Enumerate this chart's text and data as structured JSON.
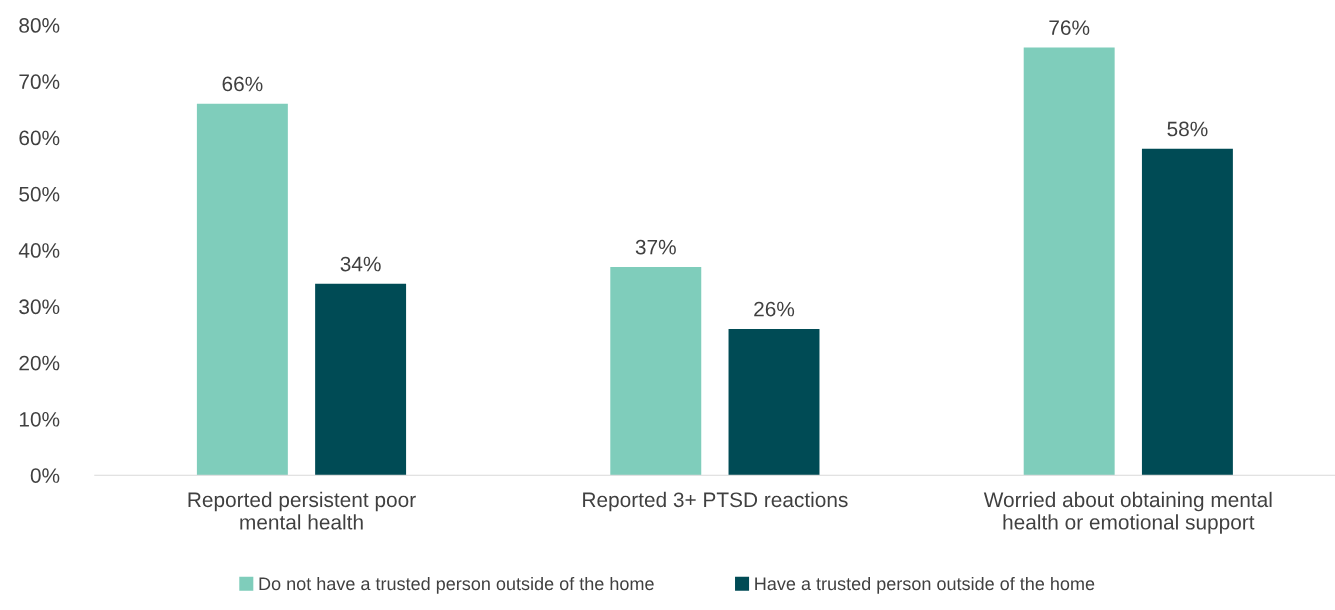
{
  "chart_data": {
    "type": "bar",
    "categories": [
      "Reported persistent poor\nmental health",
      "Reported 3+ PTSD reactions",
      "Worried about obtaining mental\nhealth or emotional support"
    ],
    "series": [
      {
        "name": "Do not have a trusted person outside of the home",
        "color": "#7fcdbb",
        "values": [
          66,
          37,
          76
        ],
        "value_labels": [
          "66%",
          "37%",
          "76%"
        ]
      },
      {
        "name": "Have a trusted person outside of the home",
        "color": "#004b55",
        "values": [
          34,
          26,
          58
        ],
        "value_labels": [
          "34%",
          "26%",
          "58%"
        ]
      }
    ],
    "ylim": [
      0,
      80
    ],
    "yticks": [
      {
        "value": 0,
        "label": "0%"
      },
      {
        "value": 10,
        "label": "10%"
      },
      {
        "value": 20,
        "label": "20%"
      },
      {
        "value": 30,
        "label": "30%"
      },
      {
        "value": 40,
        "label": "40%"
      },
      {
        "value": 50,
        "label": "50%"
      },
      {
        "value": 60,
        "label": "60%"
      },
      {
        "value": 70,
        "label": "70%"
      },
      {
        "value": 80,
        "label": "80%"
      }
    ],
    "grid": false,
    "legend": "bottom"
  }
}
